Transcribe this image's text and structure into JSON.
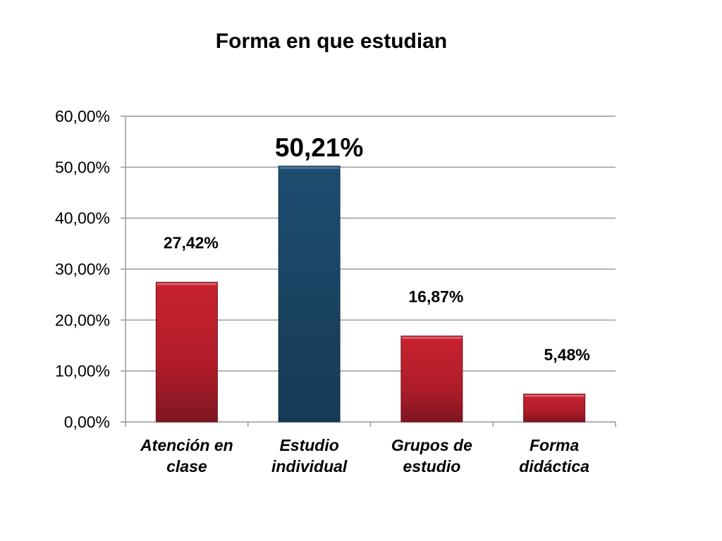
{
  "chart_data": {
    "type": "bar",
    "title": "Forma en que estudian",
    "categories": [
      [
        "Atención en",
        "clase"
      ],
      [
        "Estudio",
        "individual"
      ],
      [
        "Grupos de",
        "estudio"
      ],
      [
        "Forma",
        "didáctica"
      ]
    ],
    "values": [
      27.42,
      50.21,
      16.87,
      5.48
    ],
    "data_labels": [
      "27,42%",
      "50,21%",
      "16,87%",
      "5,48%"
    ],
    "ylim": [
      0,
      60
    ],
    "yticks": [
      0,
      10,
      20,
      30,
      40,
      50,
      60
    ],
    "ytick_labels": [
      "0,00%",
      "10,00%",
      "20,00%",
      "30,00%",
      "40,00%",
      "50,00%",
      "60,00%"
    ],
    "grid": true,
    "legend": "none",
    "colors": {
      "bar_default": "#b31b2b",
      "bar_highlight": "#1c4a6b",
      "gridline": "#9a9a9a"
    },
    "highlight_index": 1
  }
}
